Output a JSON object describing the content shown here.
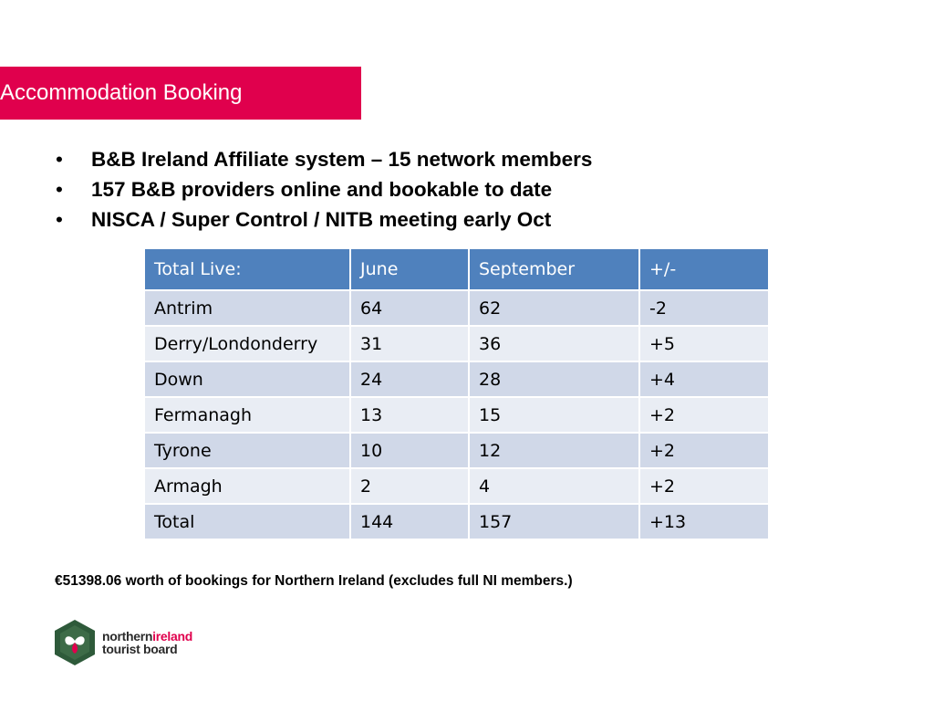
{
  "slide": {
    "title": "Accommodation Booking",
    "bullets": [
      "B&B Ireland Affiliate system – 15 network members",
      "157 B&B providers online and bookable to date",
      "NISCA / Super Control / NITB meeting early Oct"
    ],
    "bullet_glyph": "•",
    "footnote": "€51398.06  worth of bookings for Northern Ireland (excludes full NI members.)"
  },
  "table": {
    "headers": [
      "Total Live:",
      "June",
      "September",
      "+/-"
    ],
    "rows": [
      [
        "Antrim",
        "64",
        "62",
        "-2"
      ],
      [
        "Derry/Londonderry",
        "31",
        "36",
        "+5"
      ],
      [
        "Down",
        "24",
        "28",
        "+4"
      ],
      [
        "Fermanagh",
        "13",
        "15",
        "+2"
      ],
      [
        "Tyrone",
        "10",
        "12",
        "+2"
      ],
      [
        "Armagh",
        "2",
        "4",
        "+2"
      ],
      [
        "Total",
        "144",
        "157",
        "+13"
      ]
    ]
  },
  "logo": {
    "line1_a": "northern",
    "line1_b": "ireland",
    "line2": "tourist board",
    "icon": "hexagon-shamrock-icon"
  },
  "colors": {
    "title_bar": "#e0004d",
    "header_row": "#4f81bd",
    "row_odd": "#d0d8e8",
    "row_even": "#e9edf4",
    "logo_green": "#2e5a3a"
  }
}
